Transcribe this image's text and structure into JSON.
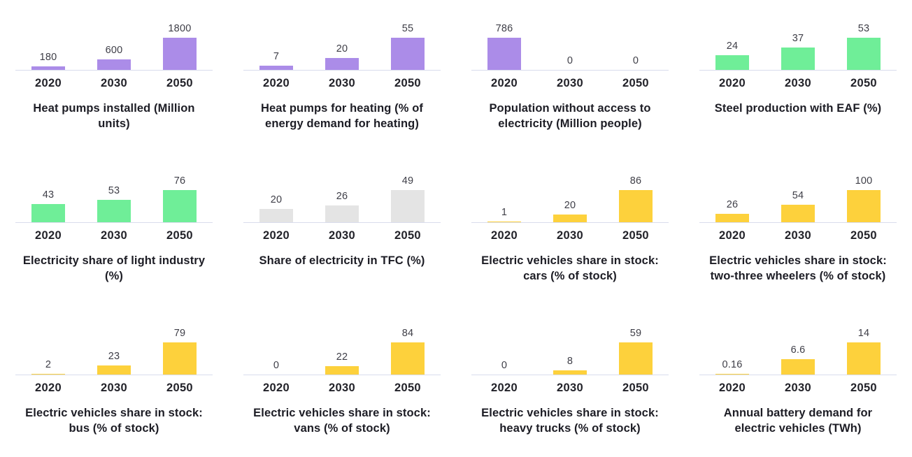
{
  "palette": {
    "purple": "#ab8ce8",
    "green": "#6fee98",
    "yellow": "#fdd13c",
    "gray": "#e4e4e4",
    "axis_line": "#d9dcec"
  },
  "chart_data": [
    {
      "type": "bar",
      "title": "Heat pumps installed (Million units)",
      "categories": [
        "2020",
        "2030",
        "2050"
      ],
      "values": [
        180,
        600,
        1800
      ],
      "labels": [
        "180",
        "600",
        "1800"
      ],
      "color": "#ab8ce8",
      "ylim": [
        0,
        1800
      ],
      "grid": false,
      "legend": "none"
    },
    {
      "type": "bar",
      "title": "Heat pumps for heating (% of energy demand for heating)",
      "categories": [
        "2020",
        "2030",
        "2050"
      ],
      "values": [
        7,
        20,
        55
      ],
      "labels": [
        "7",
        "20",
        "55"
      ],
      "color": "#ab8ce8",
      "ylim": [
        0,
        55
      ],
      "grid": false,
      "legend": "none"
    },
    {
      "type": "bar",
      "title": "Population without access to electricity (Million people)",
      "categories": [
        "2020",
        "2030",
        "2050"
      ],
      "values": [
        786,
        0,
        0
      ],
      "labels": [
        "786",
        "0",
        "0"
      ],
      "color": "#ab8ce8",
      "ylim": [
        0,
        786
      ],
      "grid": false,
      "legend": "none"
    },
    {
      "type": "bar",
      "title": "Steel production with EAF (%)",
      "categories": [
        "2020",
        "2030",
        "2050"
      ],
      "values": [
        24,
        37,
        53
      ],
      "labels": [
        "24",
        "37",
        "53"
      ],
      "color": "#6fee98",
      "ylim": [
        0,
        53
      ],
      "grid": false,
      "legend": "none"
    },
    {
      "type": "bar",
      "title": "Electricity share of light industry (%)",
      "categories": [
        "2020",
        "2030",
        "2050"
      ],
      "values": [
        43,
        53,
        76
      ],
      "labels": [
        "43",
        "53",
        "76"
      ],
      "color": "#6fee98",
      "ylim": [
        0,
        76
      ],
      "grid": false,
      "legend": "none"
    },
    {
      "type": "bar",
      "title": "Share of electricity in TFC (%)",
      "categories": [
        "2020",
        "2030",
        "2050"
      ],
      "values": [
        20,
        26,
        49
      ],
      "labels": [
        "20",
        "26",
        "49"
      ],
      "color": "#e4e4e4",
      "ylim": [
        0,
        49
      ],
      "grid": false,
      "legend": "none"
    },
    {
      "type": "bar",
      "title": "Electric vehicles share in stock: cars (% of stock)",
      "categories": [
        "2020",
        "2030",
        "2050"
      ],
      "values": [
        1,
        20,
        86
      ],
      "labels": [
        "1",
        "20",
        "86"
      ],
      "color": "#fdd13c",
      "ylim": [
        0,
        86
      ],
      "grid": false,
      "legend": "none"
    },
    {
      "type": "bar",
      "title": "Electric vehicles share in stock: two-three wheelers (% of stock)",
      "categories": [
        "2020",
        "2030",
        "2050"
      ],
      "values": [
        26,
        54,
        100
      ],
      "labels": [
        "26",
        "54",
        "100"
      ],
      "color": "#fdd13c",
      "ylim": [
        0,
        100
      ],
      "grid": false,
      "legend": "none"
    },
    {
      "type": "bar",
      "title": "Electric vehicles share in stock: bus (% of stock)",
      "categories": [
        "2020",
        "2030",
        "2050"
      ],
      "values": [
        2,
        23,
        79
      ],
      "labels": [
        "2",
        "23",
        "79"
      ],
      "color": "#fdd13c",
      "ylim": [
        0,
        79
      ],
      "grid": false,
      "legend": "none"
    },
    {
      "type": "bar",
      "title": "Electric vehicles share in stock: vans (% of stock)",
      "categories": [
        "2020",
        "2030",
        "2050"
      ],
      "values": [
        0,
        22,
        84
      ],
      "labels": [
        "0",
        "22",
        "84"
      ],
      "color": "#fdd13c",
      "ylim": [
        0,
        84
      ],
      "grid": false,
      "legend": "none"
    },
    {
      "type": "bar",
      "title": "Electric vehicles share in stock: heavy trucks (% of stock)",
      "categories": [
        "2020",
        "2030",
        "2050"
      ],
      "values": [
        0,
        8,
        59
      ],
      "labels": [
        "0",
        "8",
        "59"
      ],
      "color": "#fdd13c",
      "ylim": [
        0,
        59
      ],
      "grid": false,
      "legend": "none"
    },
    {
      "type": "bar",
      "title": "Annual battery demand for electric vehicles (TWh)",
      "categories": [
        "2020",
        "2030",
        "2050"
      ],
      "values": [
        0.16,
        6.6,
        14
      ],
      "labels": [
        "0.16",
        "6.6",
        "14"
      ],
      "color": "#fdd13c",
      "ylim": [
        0,
        14
      ],
      "grid": false,
      "legend": "none"
    }
  ]
}
